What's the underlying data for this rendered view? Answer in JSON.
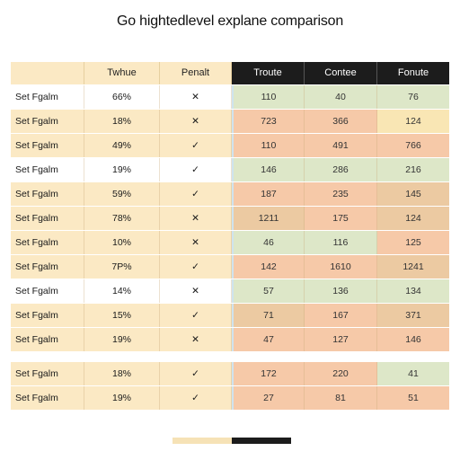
{
  "title": "Go hightedlevel explane comparison",
  "header": {
    "columns": [
      "",
      "Twhue",
      "Penalt",
      "Troute",
      "Contee",
      "Fonute"
    ]
  },
  "colors": {
    "cream": "#fbe9c4",
    "white": "#ffffff",
    "green": "#dde7c8",
    "peach": "#f6c9a8",
    "tan": "#eccaa2",
    "yellow": "#f9e6b4",
    "dark": "#1c1c1c"
  },
  "rows": [
    {
      "label": "Set Fgalm",
      "pct": "66%",
      "mark": "✕",
      "bg": "white",
      "nums": [
        "110",
        "40",
        "76"
      ],
      "tones": [
        "green",
        "green",
        "green"
      ]
    },
    {
      "label": "Set Fgalm",
      "pct": "18%",
      "mark": "✕",
      "bg": "cream",
      "nums": [
        "723",
        "366",
        "124"
      ],
      "tones": [
        "peach",
        "peach",
        "yellow"
      ]
    },
    {
      "label": "Set Fgalm",
      "pct": "49%",
      "mark": "✓",
      "bg": "cream",
      "nums": [
        "110",
        "491",
        "766"
      ],
      "tones": [
        "peach",
        "peach",
        "peach"
      ]
    },
    {
      "label": "Set Fgalm",
      "pct": "19%",
      "mark": "✓",
      "bg": "white",
      "nums": [
        "146",
        "286",
        "216"
      ],
      "tones": [
        "green",
        "green",
        "green"
      ]
    },
    {
      "label": "Set Fgalm",
      "pct": "59%",
      "mark": "✓",
      "bg": "cream",
      "nums": [
        "187",
        "235",
        "145"
      ],
      "tones": [
        "peach",
        "peach",
        "tan"
      ]
    },
    {
      "label": "Set Fgalm",
      "pct": "78%",
      "mark": "✕",
      "bg": "cream",
      "nums": [
        "1211",
        "175",
        "124"
      ],
      "tones": [
        "tan",
        "peach",
        "tan"
      ]
    },
    {
      "label": "Set Fgalm",
      "pct": "10%",
      "mark": "✕",
      "bg": "cream",
      "nums": [
        "46",
        "116",
        "125"
      ],
      "tones": [
        "green",
        "green",
        "peach"
      ]
    },
    {
      "label": "Set Fgalm",
      "pct": "7P%",
      "mark": "✓",
      "bg": "cream",
      "nums": [
        "142",
        "1610",
        "1241"
      ],
      "tones": [
        "peach",
        "peach",
        "tan"
      ]
    },
    {
      "label": "Set Fgalm",
      "pct": "14%",
      "mark": "✕",
      "bg": "white",
      "nums": [
        "57",
        "136",
        "134"
      ],
      "tones": [
        "green",
        "green",
        "green"
      ]
    },
    {
      "label": "Set Fgalm",
      "pct": "15%",
      "mark": "✓",
      "bg": "cream",
      "nums": [
        "71",
        "167",
        "371"
      ],
      "tones": [
        "tan",
        "peach",
        "tan"
      ]
    },
    {
      "label": "Set Fgalm",
      "pct": "19%",
      "mark": "✕",
      "bg": "cream",
      "nums": [
        "47",
        "127",
        "146"
      ],
      "tones": [
        "peach",
        "peach",
        "peach"
      ]
    },
    {
      "label": "Set Fgalm",
      "pct": "18%",
      "mark": "✓",
      "bg": "cream",
      "nums": [
        "172",
        "220",
        "41"
      ],
      "tones": [
        "peach",
        "peach",
        "green"
      ],
      "gap": true
    },
    {
      "label": "Set Fgalm",
      "pct": "19%",
      "mark": "✓",
      "bg": "cream",
      "nums": [
        "27",
        "81",
        "51"
      ],
      "tones": [
        "peach",
        "peach",
        "peach"
      ]
    }
  ]
}
